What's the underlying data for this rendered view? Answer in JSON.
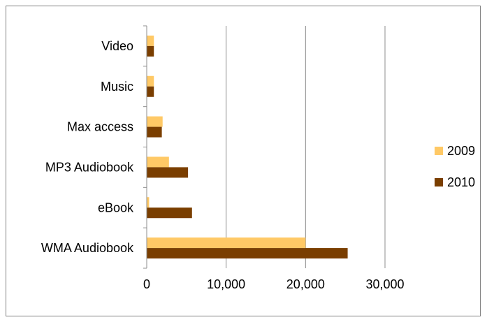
{
  "chart_data": {
    "type": "bar",
    "orientation": "horizontal",
    "categories": [
      "WMA Audiobook",
      "eBook",
      "MP3 Audiobook",
      "Max access",
      "Music",
      "Video"
    ],
    "series": [
      {
        "name": "2009",
        "color": "#ffc966",
        "values": [
          20000,
          300,
          2800,
          2000,
          900,
          900
        ]
      },
      {
        "name": "2010",
        "color": "#7a3e00",
        "values": [
          25300,
          5700,
          5200,
          1900,
          900,
          900
        ]
      }
    ],
    "xlim": [
      0,
      30000
    ],
    "xticks": [
      0,
      10000,
      20000,
      30000
    ],
    "xtick_labels": [
      "0",
      "10,000",
      "20,000",
      "30,000"
    ],
    "grid": "vertical",
    "legend_position": "right",
    "title": "",
    "xlabel": "",
    "ylabel": ""
  }
}
